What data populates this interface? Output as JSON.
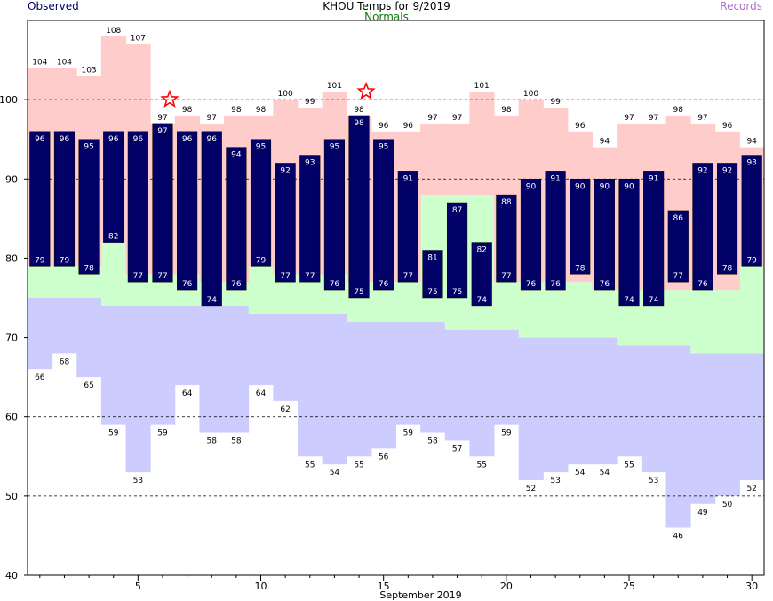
{
  "header": {
    "observed_label": "Observed",
    "title": "KHOU Temps for 9/2019",
    "normals_label": "Normals",
    "records_label": "Records"
  },
  "chart_data": {
    "type": "bar",
    "title": "KHOU Temps for 9/2019",
    "xlabel": "September 2019",
    "ylabel": "",
    "days": [
      1,
      2,
      3,
      4,
      5,
      6,
      7,
      8,
      9,
      10,
      11,
      12,
      13,
      14,
      15,
      16,
      17,
      18,
      19,
      20,
      21,
      22,
      23,
      24,
      25,
      26,
      27,
      28,
      29,
      30
    ],
    "observed_high": [
      96,
      96,
      95,
      96,
      96,
      97,
      96,
      96,
      94,
      95,
      92,
      93,
      95,
      98,
      95,
      91,
      81,
      87,
      82,
      88,
      90,
      91,
      90,
      90,
      90,
      91,
      86,
      92,
      92,
      93
    ],
    "observed_low": [
      79,
      79,
      78,
      82,
      77,
      77,
      76,
      74,
      76,
      79,
      77,
      77,
      76,
      75,
      76,
      77,
      75,
      75,
      74,
      77,
      76,
      76,
      78,
      76,
      74,
      74,
      77,
      76,
      78,
      79
    ],
    "record_high": [
      104,
      104,
      103,
      108,
      107,
      97,
      98,
      97,
      98,
      98,
      100,
      99,
      101,
      98,
      96,
      96,
      97,
      97,
      101,
      98,
      100,
      99,
      96,
      94,
      97,
      97,
      98,
      97,
      96,
      94
    ],
    "record_low": [
      66,
      68,
      65,
      59,
      53,
      59,
      64,
      58,
      58,
      64,
      62,
      55,
      54,
      55,
      56,
      59,
      58,
      57,
      55,
      59,
      52,
      53,
      54,
      54,
      55,
      53,
      46,
      49,
      50,
      52
    ],
    "normal_high": [
      79,
      79,
      79,
      82,
      78,
      78,
      78,
      77,
      77,
      79,
      78,
      78,
      78,
      77,
      77,
      77,
      88,
      88,
      88,
      77,
      77,
      77,
      77,
      76,
      76,
      76,
      76,
      76,
      76,
      79
    ],
    "normal_low": [
      75,
      75,
      75,
      74,
      74,
      74,
      74,
      74,
      74,
      73,
      73,
      73,
      73,
      72,
      72,
      72,
      72,
      71,
      71,
      71,
      70,
      70,
      70,
      70,
      69,
      69,
      69,
      68,
      68,
      68
    ],
    "record_set_days": [
      6,
      14
    ],
    "xticks": [
      5,
      10,
      15,
      20,
      25,
      30
    ],
    "yticks": [
      40,
      50,
      60,
      70,
      80,
      90,
      100
    ],
    "ylim": [
      40,
      110
    ],
    "grid": "dashed horizontal lines at 50, 60, 90, 100",
    "colors": {
      "observed": "#000066",
      "normal_band": "#ccffcc",
      "record_high": "#ffcccc",
      "record_low": "#ccccff",
      "record_marker": "#ff0000",
      "grid": "#000000"
    }
  }
}
